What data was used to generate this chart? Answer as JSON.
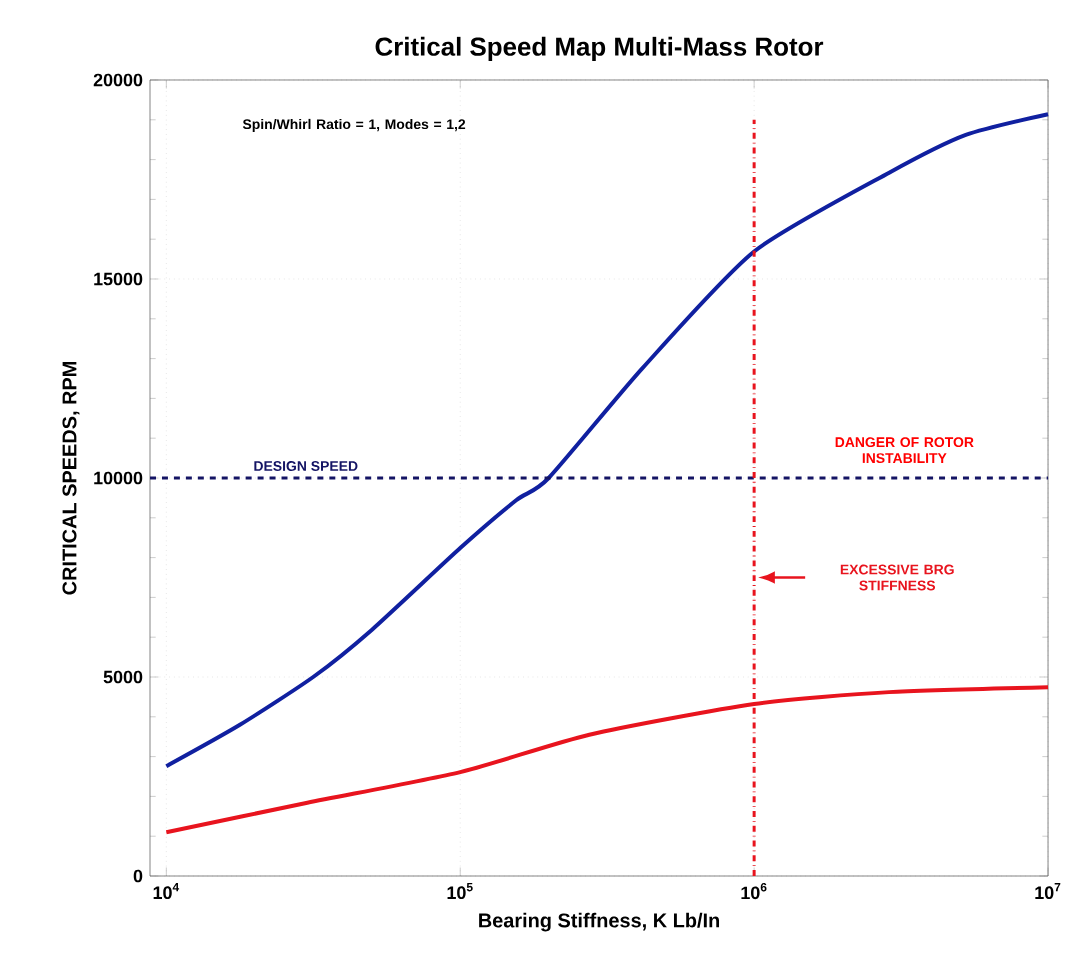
{
  "chart_data": {
    "type": "line",
    "title": "Critical Speed Map Multi-Mass Rotor",
    "xlabel": "Bearing Stiffness, K Lb/In",
    "ylabel": "CRITICAL SPEEDS, RPM",
    "log": "x",
    "xlim": [
      8800,
      10000000
    ],
    "ylim": [
      0,
      20000
    ],
    "xticks": [
      {
        "value": 10000,
        "label": "10$^{4}$"
      },
      {
        "value": 100000,
        "label": "10$^{5}$"
      },
      {
        "value": 1000000,
        "label": "10$^{6}$"
      },
      {
        "value": 10000000,
        "label": "10$^{7}$"
      }
    ],
    "yticks": [
      0,
      5000,
      10000,
      15000,
      20000
    ],
    "grid": true,
    "line_style": "solid",
    "marker": "none",
    "series": [
      {
        "color": "#1020a0",
        "x": [
          10000,
          17800,
          31600,
          50100,
          100000,
          155000,
          200000,
          417000,
          1000000,
          2880000,
          5250000,
          10000000
        ],
        "values": [
          2760,
          3800,
          5000,
          6190,
          8240,
          9440,
          10000,
          12760,
          15690,
          17670,
          18620,
          19140
        ]
      },
      {
        "color": "#e8141e",
        "x": [
          10000,
          30200,
          100000,
          275000,
          1000000,
          2880000,
          10000000
        ],
        "values": [
          1100,
          1840,
          2610,
          3550,
          4320,
          4620,
          4740
        ]
      }
    ],
    "ref_lines": [
      {
        "axis": "y",
        "value": 10000,
        "label": "DESIGN SPEED",
        "color": "#141464",
        "line_style": "dashed"
      },
      {
        "axis": "x",
        "value": 1000000,
        "label": "EXCESSIVE BRG STIFFNESS",
        "color": "#e8141e",
        "line_style": "dashdot"
      }
    ],
    "annotations": [
      "Spin/Whirl Ratio = 1, Modes = 1,2",
      "DANGER OF ROTOR INSTABILITY"
    ]
  }
}
